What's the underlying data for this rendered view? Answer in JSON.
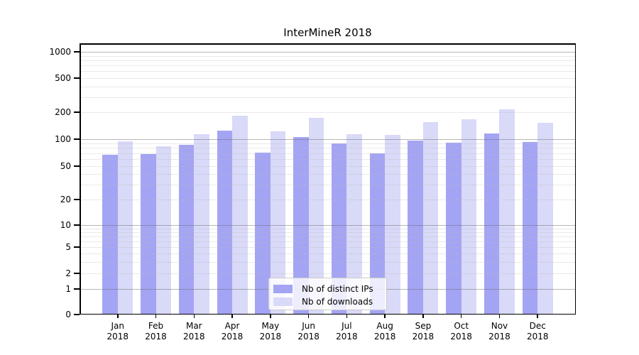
{
  "chart": {
    "title": "InterMineR 2018",
    "year": "2018",
    "legend": [
      {
        "label": "Nb of distinct IPs",
        "color": "#a4a4f4"
      },
      {
        "label": "Nb of downloads",
        "color": "#d9d9f8"
      }
    ]
  },
  "chart_data": {
    "type": "bar",
    "title": "InterMineR 2018",
    "categories": [
      "Jan 2018",
      "Feb 2018",
      "Mar 2018",
      "Apr 2018",
      "May 2018",
      "Jun 2018",
      "Jul 2018",
      "Aug 2018",
      "Sep 2018",
      "Oct 2018",
      "Nov 2018",
      "Dec 2018"
    ],
    "months": [
      "Jan",
      "Feb",
      "Mar",
      "Apr",
      "May",
      "Jun",
      "Jul",
      "Aug",
      "Sep",
      "Oct",
      "Nov",
      "Dec"
    ],
    "year": "2018",
    "series": [
      {
        "name": "Nb of distinct IPs",
        "color": "#a4a4f4",
        "values": [
          67,
          68,
          86,
          124,
          71,
          106,
          90,
          70,
          96,
          91,
          115,
          93
        ]
      },
      {
        "name": "Nb of downloads",
        "color": "#d9d9f8",
        "values": [
          95,
          83,
          114,
          181,
          123,
          173,
          114,
          112,
          156,
          168,
          216,
          151
        ]
      }
    ],
    "xlabel": "",
    "ylabel": "",
    "yscale": "symlog",
    "yticks": [
      0,
      1,
      2,
      5,
      10,
      20,
      50,
      100,
      200,
      500,
      1000
    ],
    "minor_gridlines": [
      2,
      3,
      4,
      5,
      6,
      7,
      8,
      9,
      20,
      30,
      40,
      50,
      60,
      70,
      80,
      90,
      200,
      300,
      400,
      500,
      600,
      700,
      800,
      900
    ],
    "major_gridlines": [
      1,
      10,
      100,
      1000
    ],
    "ylim": [
      0,
      1300
    ],
    "grid": true,
    "legend_position": "lower center"
  }
}
